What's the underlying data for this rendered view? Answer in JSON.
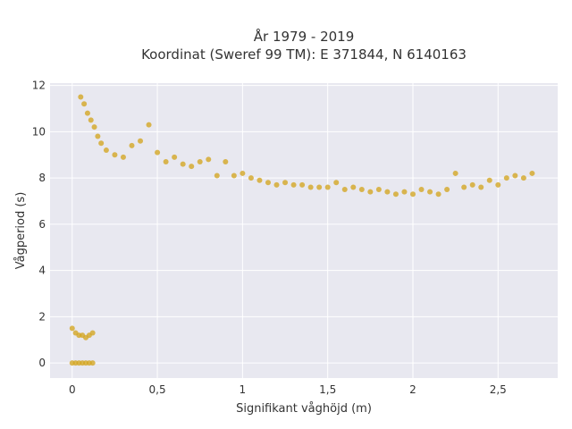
{
  "chart_data": {
    "type": "scatter",
    "title_lines": [
      "År 1979 - 2019",
      "Koordinat (Sweref 99 TM): E 371844, N 6140163"
    ],
    "xlabel": "Signifikant våghöjd (m)",
    "ylabel": "Vågperiod (s)",
    "xlim": [
      -0.13,
      2.85
    ],
    "ylim": [
      -0.65,
      12.1
    ],
    "x_ticks": [
      0,
      0.5,
      1,
      1.5,
      2,
      2.5
    ],
    "x_tick_labels": [
      "0",
      "0,5",
      "1",
      "1,5",
      "2",
      "2,5"
    ],
    "y_ticks": [
      0,
      2,
      4,
      6,
      8,
      10,
      12
    ],
    "y_tick_labels": [
      "0",
      "2",
      "4",
      "6",
      "8",
      "10",
      "12"
    ],
    "grid": true,
    "marker_color": "#D4A520",
    "background_color": "#E8E8F0",
    "series": [
      {
        "points_x": [
          0.0,
          0.02,
          0.04,
          0.06,
          0.08,
          0.1,
          0.12,
          0.05,
          0.07,
          0.09,
          0.11,
          0.13,
          0.15,
          0.17,
          0.2,
          0.25,
          0.3,
          0.35,
          0.4,
          0.45,
          0.5,
          0.55,
          0.6,
          0.65,
          0.7,
          0.75,
          0.8,
          0.85,
          0.9,
          0.95,
          1.0,
          1.05,
          1.1,
          1.15,
          1.2,
          1.25,
          1.3,
          1.35,
          1.4,
          1.45,
          1.5,
          1.55,
          1.6,
          1.65,
          1.7,
          1.75,
          1.8,
          1.85,
          1.9,
          1.95,
          2.0,
          2.05,
          2.1,
          2.15,
          2.2,
          2.25,
          2.3,
          2.35,
          2.4,
          2.45,
          2.5,
          2.55,
          2.6,
          2.65,
          2.7
        ],
        "points_y": [
          1.5,
          1.3,
          1.2,
          1.2,
          1.1,
          1.2,
          1.3,
          11.5,
          11.2,
          10.8,
          10.5,
          10.2,
          9.8,
          9.5,
          9.2,
          9.0,
          8.9,
          9.4,
          9.6,
          10.3,
          9.1,
          8.7,
          8.9,
          8.6,
          8.5,
          8.7,
          8.8,
          8.1,
          8.7,
          8.1,
          8.2,
          8.0,
          7.9,
          7.8,
          7.7,
          7.8,
          7.7,
          7.7,
          7.6,
          7.6,
          7.6,
          7.8,
          7.5,
          7.6,
          7.5,
          7.4,
          7.5,
          7.4,
          7.3,
          7.4,
          7.3,
          7.5,
          7.4,
          7.3,
          7.5,
          8.2,
          7.6,
          7.7,
          7.6,
          7.9,
          7.7,
          8.0,
          8.1,
          8.0,
          8.2
        ]
      }
    ],
    "zero_period_points_x": [
      0.0,
      0.02,
      0.04,
      0.06,
      0.08,
      0.1,
      0.12
    ],
    "zero_period_points_y": [
      0,
      0,
      0,
      0,
      0,
      0,
      0
    ]
  }
}
